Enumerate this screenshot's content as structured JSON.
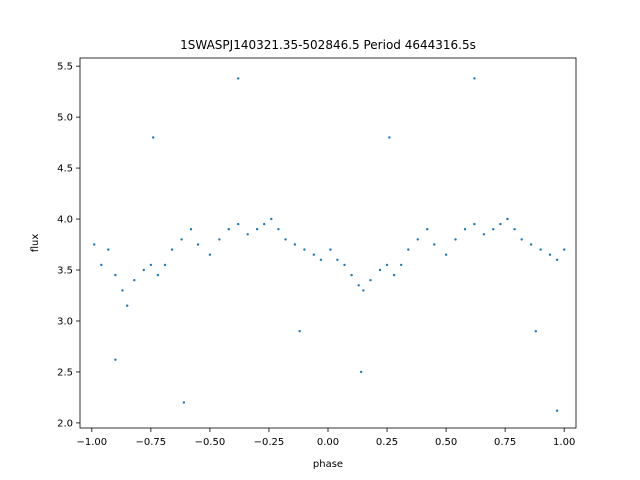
{
  "chart_data": {
    "type": "scatter",
    "title": "1SWASPJ140321.35-502846.5 Period 4644316.5s",
    "xlabel": "phase",
    "ylabel": "flux",
    "xlim": [
      -1.05,
      1.05
    ],
    "ylim": [
      1.95,
      5.58
    ],
    "x_ticks": [
      -1.0,
      -0.75,
      -0.5,
      -0.25,
      0.0,
      0.25,
      0.5,
      0.75,
      1.0
    ],
    "x_tick_labels": [
      "−1.00",
      "−0.75",
      "−0.50",
      "−0.25",
      "0.00",
      "0.25",
      "0.50",
      "0.75",
      "1.00"
    ],
    "y_ticks": [
      2.0,
      2.5,
      3.0,
      3.5,
      4.0,
      4.5,
      5.0,
      5.5
    ],
    "y_tick_labels": [
      "2.0",
      "2.5",
      "3.0",
      "3.5",
      "4.0",
      "4.5",
      "5.0",
      "5.5"
    ],
    "grid": false,
    "marker_color": "#1f77b4",
    "series": [
      {
        "points": [
          [
            -0.99,
            3.75
          ],
          [
            -0.96,
            3.55
          ],
          [
            -0.93,
            3.7
          ],
          [
            -0.9,
            3.45
          ],
          [
            -0.87,
            3.3
          ],
          [
            -0.85,
            3.15
          ],
          [
            -0.82,
            3.4
          ],
          [
            -0.78,
            3.5
          ],
          [
            -0.75,
            3.55
          ],
          [
            -0.72,
            3.45
          ],
          [
            -0.69,
            3.55
          ],
          [
            -0.66,
            3.7
          ],
          [
            -0.62,
            3.8
          ],
          [
            -0.58,
            3.9
          ],
          [
            -0.55,
            3.75
          ],
          [
            -0.5,
            3.65
          ],
          [
            -0.46,
            3.8
          ],
          [
            -0.42,
            3.9
          ],
          [
            -0.38,
            3.95
          ],
          [
            -0.34,
            3.85
          ],
          [
            -0.3,
            3.9
          ],
          [
            -0.27,
            3.95
          ],
          [
            -0.24,
            4.0
          ],
          [
            -0.21,
            3.9
          ],
          [
            -0.18,
            3.8
          ],
          [
            -0.14,
            3.75
          ],
          [
            -0.1,
            3.7
          ],
          [
            -0.06,
            3.65
          ],
          [
            -0.03,
            3.6
          ],
          [
            0.01,
            3.7
          ],
          [
            0.04,
            3.6
          ],
          [
            0.07,
            3.55
          ],
          [
            0.1,
            3.45
          ],
          [
            0.13,
            3.35
          ],
          [
            0.15,
            3.3
          ],
          [
            0.18,
            3.4
          ],
          [
            0.22,
            3.5
          ],
          [
            0.25,
            3.55
          ],
          [
            0.28,
            3.45
          ],
          [
            0.31,
            3.55
          ],
          [
            0.34,
            3.7
          ],
          [
            0.38,
            3.8
          ],
          [
            0.42,
            3.9
          ],
          [
            0.45,
            3.75
          ],
          [
            0.5,
            3.65
          ],
          [
            0.54,
            3.8
          ],
          [
            0.58,
            3.9
          ],
          [
            0.62,
            3.95
          ],
          [
            0.66,
            3.85
          ],
          [
            0.7,
            3.9
          ],
          [
            0.73,
            3.95
          ],
          [
            0.76,
            4.0
          ],
          [
            0.79,
            3.9
          ],
          [
            0.82,
            3.8
          ],
          [
            0.86,
            3.75
          ],
          [
            0.9,
            3.7
          ],
          [
            0.94,
            3.65
          ],
          [
            0.97,
            3.6
          ],
          [
            1.0,
            3.7
          ],
          [
            -0.9,
            2.62
          ],
          [
            -0.61,
            2.2
          ],
          [
            -0.38,
            5.38
          ],
          [
            0.62,
            5.38
          ],
          [
            0.97,
            2.12
          ],
          [
            -0.74,
            4.8
          ],
          [
            0.26,
            4.8
          ],
          [
            0.14,
            2.5
          ],
          [
            -0.12,
            2.9
          ],
          [
            0.88,
            2.9
          ]
        ]
      }
    ]
  }
}
